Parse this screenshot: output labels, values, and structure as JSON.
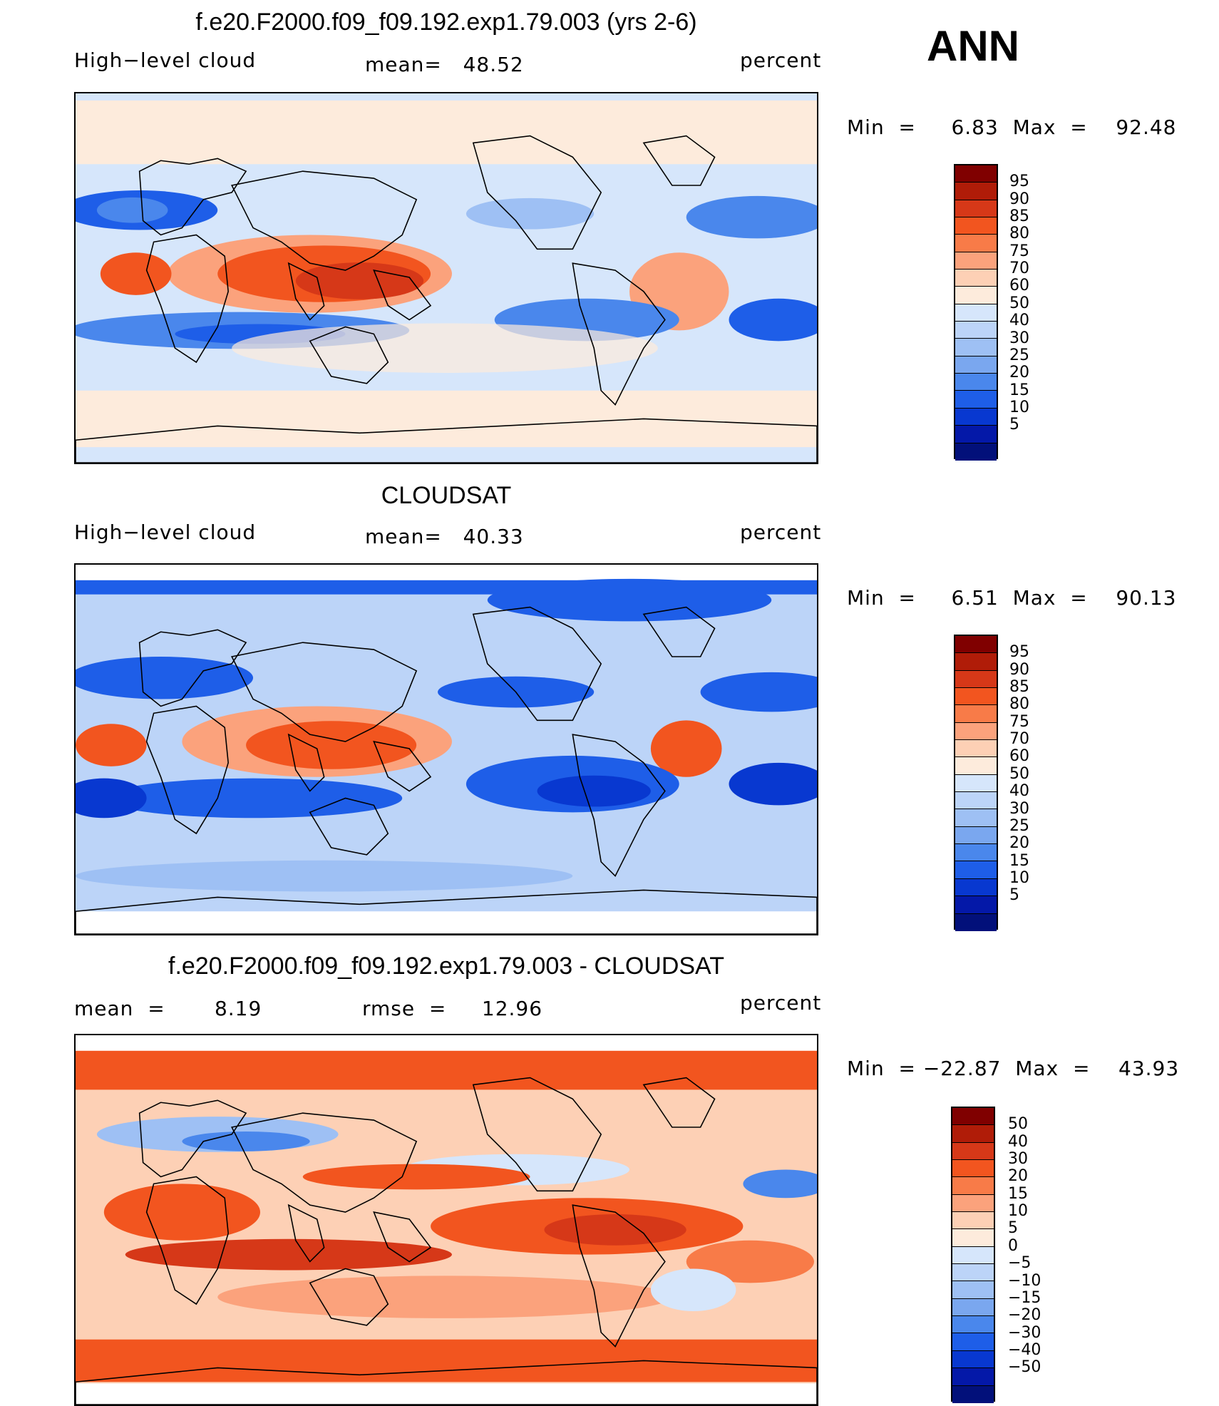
{
  "season": "ANN",
  "panels": [
    {
      "title": "f.e20.F2000.f09_f09.192.exp1.79.003 (yrs 2-6)",
      "left_label": "High−level cloud",
      "center_label": "mean=   48.52",
      "right_label": "percent",
      "minmax": "Min  =     6.83  Max  =    92.48",
      "colorbar": [
        "#800000",
        "#b01c08",
        "#d63818",
        "#f2551f",
        "#f87b48",
        "#fba27c",
        "#fdd0b5",
        "#fdebdc",
        "#d6e6fb",
        "#bcd4f8",
        "#9ec0f4",
        "#7aa7ef",
        "#4a87ec",
        "#1e5ee8",
        "#0838d0",
        "#0418a8",
        "#02107a"
      ],
      "ticks": [
        "95",
        "90",
        "85",
        "80",
        "75",
        "70",
        "60",
        "50",
        "40",
        "30",
        "25",
        "20",
        "15",
        "10",
        "5"
      ],
      "map_colors": {
        "base": "#d6e6fb",
        "warm": [
          "#fdebdc",
          "#fba27c",
          "#f2551f",
          "#d63818"
        ],
        "cool": [
          "#9ec0f4",
          "#4a87ec",
          "#1e5ee8"
        ]
      }
    },
    {
      "title": "CLOUDSAT",
      "left_label": "High−level cloud",
      "center_label": "mean=   40.33",
      "right_label": "percent",
      "minmax": "Min  =     6.51  Max  =    90.13",
      "colorbar": [
        "#800000",
        "#b01c08",
        "#d63818",
        "#f2551f",
        "#f87b48",
        "#fba27c",
        "#fdd0b5",
        "#fdebdc",
        "#d6e6fb",
        "#bcd4f8",
        "#9ec0f4",
        "#7aa7ef",
        "#4a87ec",
        "#1e5ee8",
        "#0838d0",
        "#0418a8",
        "#02107a"
      ],
      "ticks": [
        "95",
        "90",
        "85",
        "80",
        "75",
        "70",
        "60",
        "50",
        "40",
        "30",
        "25",
        "20",
        "15",
        "10",
        "5"
      ],
      "map_colors": {
        "base": "#bcd4f8",
        "warm": [
          "#fdebdc",
          "#fba27c",
          "#f2551f"
        ],
        "cool": [
          "#9ec0f4",
          "#4a87ec",
          "#1e5ee8",
          "#0838d0"
        ]
      }
    },
    {
      "title": "f.e20.F2000.f09_f09.192.exp1.79.003 - CLOUDSAT",
      "left_label": "mean  =       8.19",
      "center_label": "rmse  =     12.96",
      "right_label": "percent",
      "minmax": "Min  = −22.87  Max  =    43.93",
      "colorbar": [
        "#800000",
        "#b01c08",
        "#d63818",
        "#f2551f",
        "#f87b48",
        "#fba27c",
        "#fdd0b5",
        "#fdebdc",
        "#d6e6fb",
        "#bcd4f8",
        "#9ec0f4",
        "#7aa7ef",
        "#4a87ec",
        "#1e5ee8",
        "#0838d0",
        "#0418a8",
        "#02107a"
      ],
      "ticks": [
        "50",
        "40",
        "30",
        "20",
        "15",
        "10",
        "5",
        "0",
        "−5",
        "−10",
        "−15",
        "−20",
        "−30",
        "−40",
        "−50"
      ],
      "map_colors": {
        "base": "#fdd0b5",
        "warm": [
          "#fba27c",
          "#f87b48",
          "#f2551f",
          "#d63818"
        ],
        "cool": [
          "#d6e6fb",
          "#9ec0f4",
          "#4a87ec"
        ]
      }
    }
  ]
}
